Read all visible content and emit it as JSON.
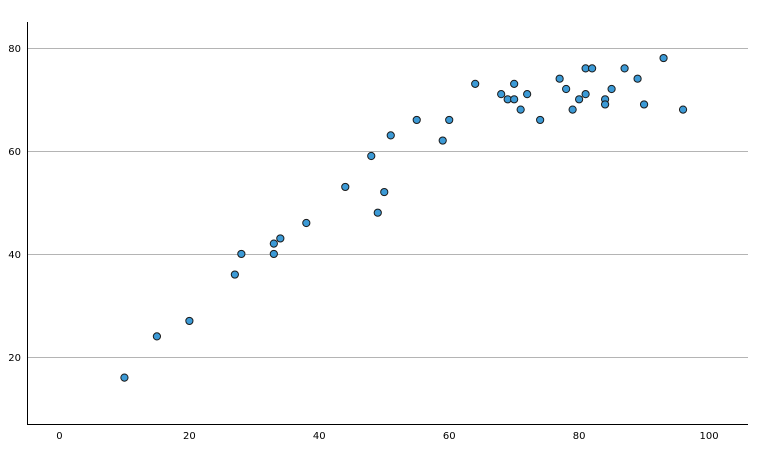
{
  "chart_data": {
    "type": "scatter",
    "title": "",
    "xlabel": "",
    "ylabel": "",
    "xlim": [
      -5,
      106
    ],
    "ylim": [
      7,
      85
    ],
    "xticks": [
      0,
      20,
      40,
      60,
      80,
      100
    ],
    "yticks": [
      20,
      40,
      60,
      80
    ],
    "xtick_labels": [
      "0",
      "20",
      "40",
      "60",
      "80",
      "100"
    ],
    "ytick_labels": [
      "20",
      "40",
      "60",
      "80"
    ],
    "grid": "horizontal",
    "legend": "none",
    "point_color": "#3c9ad6",
    "point_edge_color": "#1a1a1a",
    "grid_color": "#b4b4b4",
    "series": [
      {
        "points": [
          [
            10,
            16
          ],
          [
            15,
            24
          ],
          [
            20,
            27
          ],
          [
            27,
            36
          ],
          [
            28,
            40
          ],
          [
            33,
            40
          ],
          [
            33,
            42
          ],
          [
            34,
            43
          ],
          [
            38,
            46
          ],
          [
            44,
            53
          ],
          [
            48,
            59
          ],
          [
            49,
            48
          ],
          [
            50,
            52
          ],
          [
            51,
            63
          ],
          [
            55,
            66
          ],
          [
            59,
            62
          ],
          [
            60,
            66
          ],
          [
            64,
            73
          ],
          [
            68,
            71
          ],
          [
            69,
            70
          ],
          [
            70,
            70
          ],
          [
            70,
            73
          ],
          [
            71,
            68
          ],
          [
            72,
            71
          ],
          [
            74,
            66
          ],
          [
            77,
            74
          ],
          [
            78,
            72
          ],
          [
            79,
            68
          ],
          [
            80,
            70
          ],
          [
            81,
            71
          ],
          [
            81,
            76
          ],
          [
            82,
            76
          ],
          [
            84,
            70
          ],
          [
            84,
            69
          ],
          [
            85,
            72
          ],
          [
            87,
            76
          ],
          [
            89,
            74
          ],
          [
            90,
            69
          ],
          [
            93,
            78
          ],
          [
            96,
            68
          ]
        ]
      }
    ]
  }
}
